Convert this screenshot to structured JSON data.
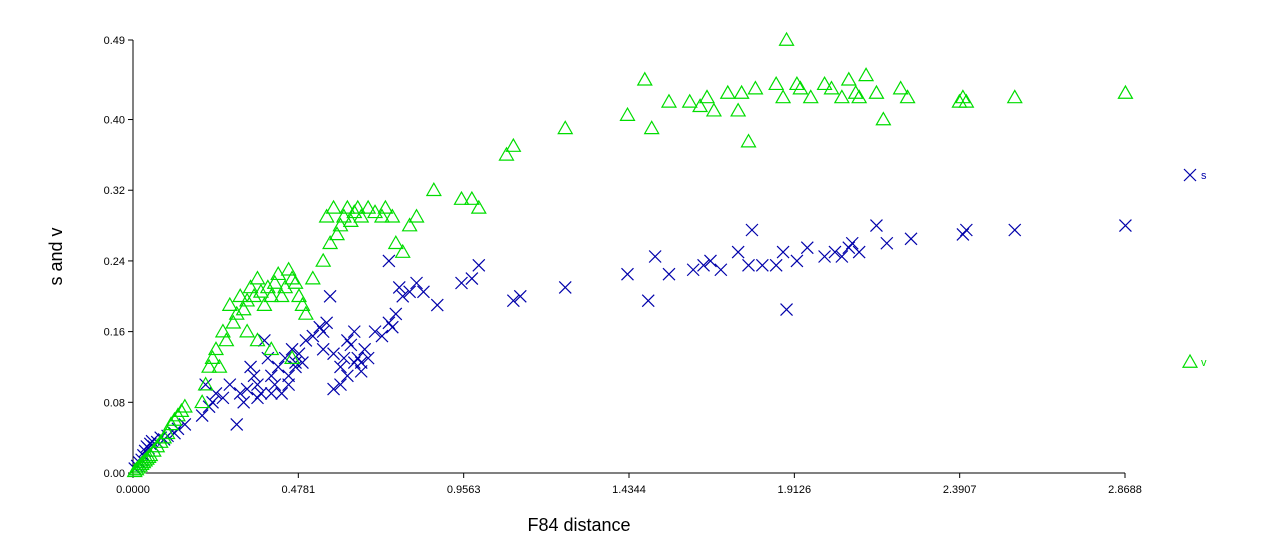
{
  "chart_data": {
    "type": "scatter",
    "xlabel": "F84 distance",
    "ylabel": "s and v",
    "xlim": [
      0,
      2.8688
    ],
    "ylim": [
      0,
      0.49
    ],
    "xticks": [
      "0.0000",
      "0.4781",
      "0.9563",
      "1.4344",
      "1.9126",
      "2.3907",
      "2.8688"
    ],
    "yticks": [
      "0.00",
      "0.08",
      "0.16",
      "0.24",
      "0.32",
      "0.40",
      "0.49"
    ],
    "grid": false,
    "legend_position": "right",
    "series": [
      {
        "name": "s",
        "marker": "x",
        "color": "#0000aa",
        "points": [
          [
            0.005,
            0.005
          ],
          [
            0.012,
            0.008
          ],
          [
            0.018,
            0.012
          ],
          [
            0.025,
            0.015
          ],
          [
            0.03,
            0.02
          ],
          [
            0.035,
            0.025
          ],
          [
            0.04,
            0.03
          ],
          [
            0.045,
            0.028
          ],
          [
            0.05,
            0.033
          ],
          [
            0.055,
            0.036
          ],
          [
            0.06,
            0.03
          ],
          [
            0.07,
            0.035
          ],
          [
            0.08,
            0.04
          ],
          [
            0.09,
            0.038
          ],
          [
            0.1,
            0.042
          ],
          [
            0.12,
            0.045
          ],
          [
            0.13,
            0.05
          ],
          [
            0.15,
            0.055
          ],
          [
            0.2,
            0.065
          ],
          [
            0.22,
            0.075
          ],
          [
            0.24,
            0.09
          ],
          [
            0.26,
            0.085
          ],
          [
            0.28,
            0.1
          ],
          [
            0.3,
            0.055
          ],
          [
            0.31,
            0.09
          ],
          [
            0.32,
            0.08
          ],
          [
            0.33,
            0.095
          ],
          [
            0.34,
            0.12
          ],
          [
            0.35,
            0.11
          ],
          [
            0.36,
            0.1
          ],
          [
            0.37,
            0.09
          ],
          [
            0.38,
            0.15
          ],
          [
            0.39,
            0.13
          ],
          [
            0.4,
            0.11
          ],
          [
            0.41,
            0.1
          ],
          [
            0.42,
            0.12
          ],
          [
            0.43,
            0.09
          ],
          [
            0.44,
            0.13
          ],
          [
            0.45,
            0.11
          ],
          [
            0.46,
            0.14
          ],
          [
            0.47,
            0.12
          ],
          [
            0.48,
            0.135
          ],
          [
            0.49,
            0.125
          ],
          [
            0.21,
            0.1
          ],
          [
            0.23,
            0.08
          ],
          [
            0.36,
            0.085
          ],
          [
            0.4,
            0.09
          ],
          [
            0.45,
            0.1
          ],
          [
            0.47,
            0.125
          ],
          [
            0.5,
            0.15
          ],
          [
            0.52,
            0.155
          ],
          [
            0.54,
            0.165
          ],
          [
            0.55,
            0.16
          ],
          [
            0.56,
            0.17
          ],
          [
            0.55,
            0.14
          ],
          [
            0.58,
            0.135
          ],
          [
            0.57,
            0.2
          ],
          [
            0.6,
            0.12
          ],
          [
            0.61,
            0.13
          ],
          [
            0.62,
            0.15
          ],
          [
            0.63,
            0.145
          ],
          [
            0.64,
            0.16
          ],
          [
            0.65,
            0.13
          ],
          [
            0.66,
            0.125
          ],
          [
            0.67,
            0.14
          ],
          [
            0.68,
            0.13
          ],
          [
            0.7,
            0.16
          ],
          [
            0.72,
            0.155
          ],
          [
            0.74,
            0.17
          ],
          [
            0.75,
            0.165
          ],
          [
            0.76,
            0.18
          ],
          [
            0.78,
            0.2
          ],
          [
            0.8,
            0.205
          ],
          [
            0.58,
            0.095
          ],
          [
            0.6,
            0.1
          ],
          [
            0.62,
            0.11
          ],
          [
            0.64,
            0.125
          ],
          [
            0.66,
            0.115
          ],
          [
            0.74,
            0.24
          ],
          [
            0.77,
            0.21
          ],
          [
            0.82,
            0.215
          ],
          [
            0.84,
            0.205
          ],
          [
            0.88,
            0.19
          ],
          [
            0.95,
            0.215
          ],
          [
            0.98,
            0.22
          ],
          [
            1.0,
            0.235
          ],
          [
            1.1,
            0.195
          ],
          [
            1.12,
            0.2
          ],
          [
            1.25,
            0.21
          ],
          [
            1.43,
            0.225
          ],
          [
            1.49,
            0.195
          ],
          [
            1.51,
            0.245
          ],
          [
            1.55,
            0.225
          ],
          [
            1.62,
            0.23
          ],
          [
            1.65,
            0.235
          ],
          [
            1.67,
            0.24
          ],
          [
            1.7,
            0.23
          ],
          [
            1.75,
            0.25
          ],
          [
            1.78,
            0.235
          ],
          [
            1.79,
            0.275
          ],
          [
            1.82,
            0.235
          ],
          [
            1.86,
            0.235
          ],
          [
            1.88,
            0.25
          ],
          [
            1.89,
            0.185
          ],
          [
            1.92,
            0.24
          ],
          [
            1.95,
            0.255
          ],
          [
            2.0,
            0.245
          ],
          [
            2.03,
            0.25
          ],
          [
            2.05,
            0.245
          ],
          [
            2.07,
            0.255
          ],
          [
            2.08,
            0.26
          ],
          [
            2.1,
            0.25
          ],
          [
            2.15,
            0.28
          ],
          [
            2.18,
            0.26
          ],
          [
            2.25,
            0.265
          ],
          [
            2.4,
            0.27
          ],
          [
            2.41,
            0.275
          ],
          [
            2.55,
            0.275
          ],
          [
            2.87,
            0.28
          ]
        ]
      },
      {
        "name": "v",
        "marker": "triangle",
        "color": "#00dd00",
        "points": [
          [
            0.005,
            0.002
          ],
          [
            0.01,
            0.004
          ],
          [
            0.015,
            0.006
          ],
          [
            0.02,
            0.008
          ],
          [
            0.025,
            0.01
          ],
          [
            0.03,
            0.012
          ],
          [
            0.035,
            0.014
          ],
          [
            0.04,
            0.016
          ],
          [
            0.045,
            0.018
          ],
          [
            0.05,
            0.02
          ],
          [
            0.06,
            0.025
          ],
          [
            0.07,
            0.03
          ],
          [
            0.08,
            0.035
          ],
          [
            0.09,
            0.04
          ],
          [
            0.1,
            0.045
          ],
          [
            0.11,
            0.055
          ],
          [
            0.12,
            0.06
          ],
          [
            0.13,
            0.065
          ],
          [
            0.14,
            0.07
          ],
          [
            0.15,
            0.075
          ],
          [
            0.2,
            0.08
          ],
          [
            0.21,
            0.1
          ],
          [
            0.22,
            0.12
          ],
          [
            0.23,
            0.13
          ],
          [
            0.24,
            0.14
          ],
          [
            0.25,
            0.12
          ],
          [
            0.26,
            0.16
          ],
          [
            0.27,
            0.15
          ],
          [
            0.28,
            0.19
          ],
          [
            0.29,
            0.17
          ],
          [
            0.3,
            0.18
          ],
          [
            0.31,
            0.2
          ],
          [
            0.32,
            0.185
          ],
          [
            0.33,
            0.195
          ],
          [
            0.34,
            0.21
          ],
          [
            0.35,
            0.2
          ],
          [
            0.36,
            0.22
          ],
          [
            0.37,
            0.205
          ],
          [
            0.38,
            0.19
          ],
          [
            0.39,
            0.21
          ],
          [
            0.4,
            0.2
          ],
          [
            0.41,
            0.215
          ],
          [
            0.42,
            0.225
          ],
          [
            0.43,
            0.2
          ],
          [
            0.44,
            0.21
          ],
          [
            0.45,
            0.23
          ],
          [
            0.46,
            0.22
          ],
          [
            0.47,
            0.215
          ],
          [
            0.48,
            0.2
          ],
          [
            0.49,
            0.19
          ],
          [
            0.5,
            0.18
          ],
          [
            0.33,
            0.16
          ],
          [
            0.36,
            0.15
          ],
          [
            0.4,
            0.14
          ],
          [
            0.46,
            0.13
          ],
          [
            0.52,
            0.22
          ],
          [
            0.55,
            0.24
          ],
          [
            0.56,
            0.29
          ],
          [
            0.57,
            0.26
          ],
          [
            0.58,
            0.3
          ],
          [
            0.59,
            0.27
          ],
          [
            0.6,
            0.28
          ],
          [
            0.61,
            0.29
          ],
          [
            0.62,
            0.3
          ],
          [
            0.63,
            0.285
          ],
          [
            0.64,
            0.295
          ],
          [
            0.65,
            0.3
          ],
          [
            0.66,
            0.29
          ],
          [
            0.68,
            0.3
          ],
          [
            0.7,
            0.295
          ],
          [
            0.72,
            0.29
          ],
          [
            0.73,
            0.3
          ],
          [
            0.75,
            0.29
          ],
          [
            0.76,
            0.26
          ],
          [
            0.78,
            0.25
          ],
          [
            0.8,
            0.28
          ],
          [
            0.82,
            0.29
          ],
          [
            0.87,
            0.32
          ],
          [
            0.95,
            0.31
          ],
          [
            0.98,
            0.31
          ],
          [
            1.0,
            0.3
          ],
          [
            1.08,
            0.36
          ],
          [
            1.1,
            0.37
          ],
          [
            1.25,
            0.39
          ],
          [
            1.43,
            0.405
          ],
          [
            1.48,
            0.445
          ],
          [
            1.5,
            0.39
          ],
          [
            1.55,
            0.42
          ],
          [
            1.61,
            0.42
          ],
          [
            1.64,
            0.415
          ],
          [
            1.66,
            0.425
          ],
          [
            1.68,
            0.41
          ],
          [
            1.72,
            0.43
          ],
          [
            1.75,
            0.41
          ],
          [
            1.76,
            0.43
          ],
          [
            1.78,
            0.375
          ],
          [
            1.8,
            0.435
          ],
          [
            1.86,
            0.44
          ],
          [
            1.88,
            0.425
          ],
          [
            1.89,
            0.49
          ],
          [
            1.92,
            0.44
          ],
          [
            1.93,
            0.435
          ],
          [
            1.96,
            0.425
          ],
          [
            2.0,
            0.44
          ],
          [
            2.02,
            0.435
          ],
          [
            2.05,
            0.425
          ],
          [
            2.07,
            0.445
          ],
          [
            2.09,
            0.43
          ],
          [
            2.1,
            0.425
          ],
          [
            2.12,
            0.45
          ],
          [
            2.15,
            0.43
          ],
          [
            2.17,
            0.4
          ],
          [
            2.22,
            0.435
          ],
          [
            2.24,
            0.425
          ],
          [
            2.39,
            0.42
          ],
          [
            2.4,
            0.425
          ],
          [
            2.41,
            0.42
          ],
          [
            2.55,
            0.425
          ],
          [
            2.87,
            0.43
          ]
        ]
      }
    ]
  }
}
